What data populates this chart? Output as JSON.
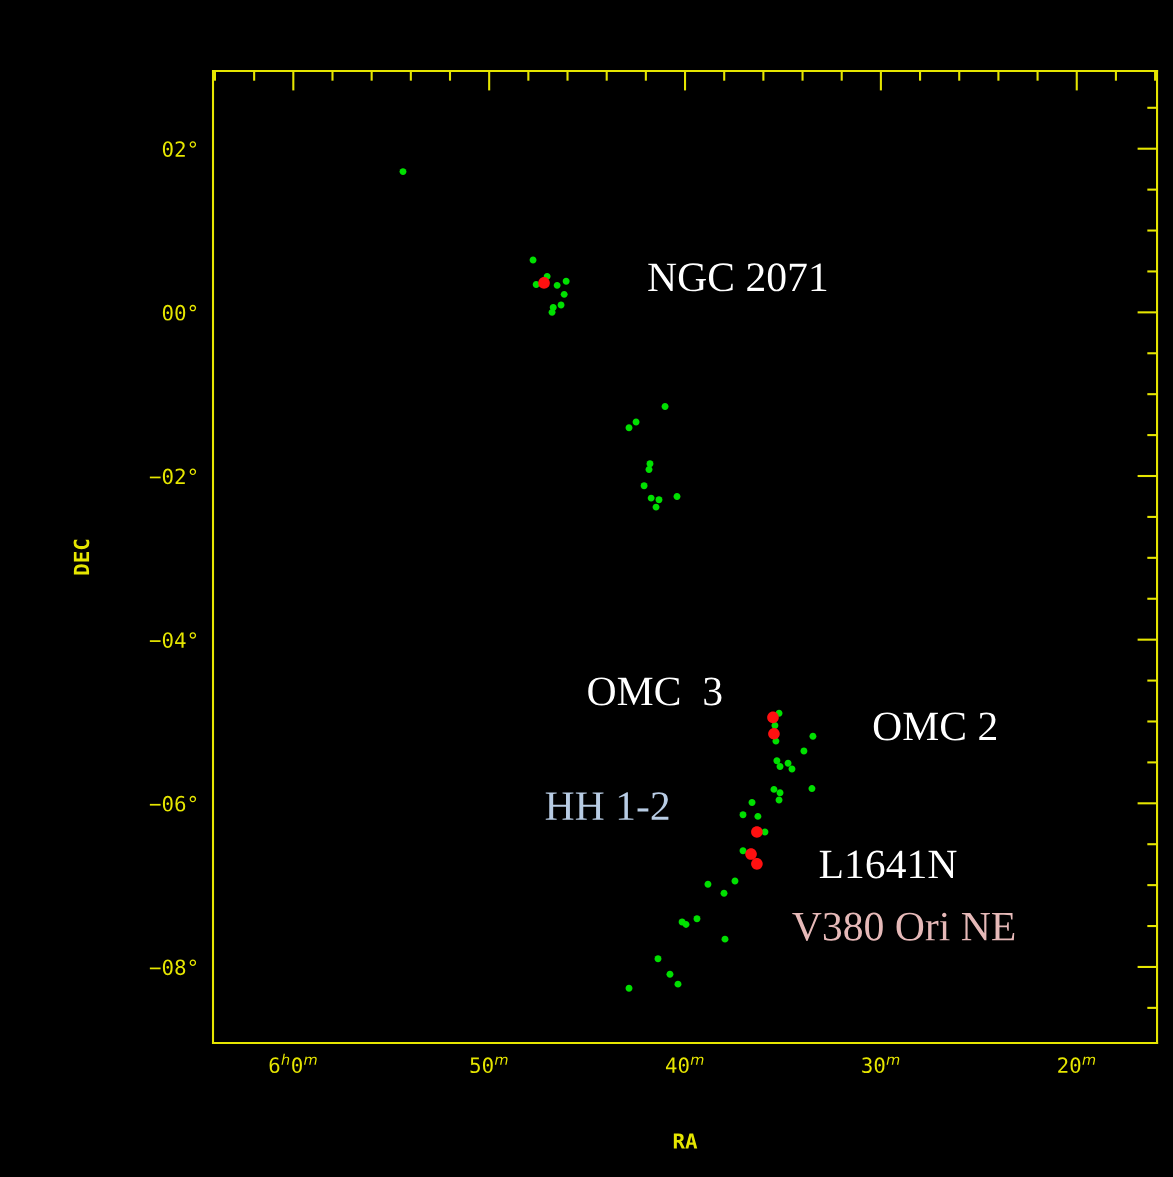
{
  "chart_data": {
    "type": "scatter",
    "xlabel": "RA",
    "ylabel": "DEC",
    "xlim": [
      64.1,
      15.9
    ],
    "ylim": [
      -8.93,
      2.95
    ],
    "xticks": [
      {
        "value": 64,
        "label": null
      },
      {
        "value": 62,
        "label": null
      },
      {
        "value": 60,
        "label": "6$^{h}$0$^{m}$"
      },
      {
        "value": 58,
        "label": null
      },
      {
        "value": 56,
        "label": null
      },
      {
        "value": 54,
        "label": null
      },
      {
        "value": 52,
        "label": null
      },
      {
        "value": 50,
        "label": "50$^{m}$"
      },
      {
        "value": 48,
        "label": null
      },
      {
        "value": 46,
        "label": null
      },
      {
        "value": 44,
        "label": null
      },
      {
        "value": 42,
        "label": null
      },
      {
        "value": 40,
        "label": "40$^{m}$"
      },
      {
        "value": 38,
        "label": null
      },
      {
        "value": 36,
        "label": null
      },
      {
        "value": 34,
        "label": null
      },
      {
        "value": 32,
        "label": null
      },
      {
        "value": 30,
        "label": "30$^{m}$"
      },
      {
        "value": 28,
        "label": null
      },
      {
        "value": 26,
        "label": null
      },
      {
        "value": 24,
        "label": null
      },
      {
        "value": 22,
        "label": null
      },
      {
        "value": 20,
        "label": "20$^{m}$"
      },
      {
        "value": 18,
        "label": null
      },
      {
        "value": 16,
        "label": null
      }
    ],
    "yticks": [
      {
        "value": -8.5,
        "label": null
      },
      {
        "value": -8,
        "label": "−08°"
      },
      {
        "value": -7.5,
        "label": null
      },
      {
        "value": -7,
        "label": null
      },
      {
        "value": -6.5,
        "label": null
      },
      {
        "value": -6,
        "label": "−06°"
      },
      {
        "value": -5.5,
        "label": null
      },
      {
        "value": -5,
        "label": null
      },
      {
        "value": -4.5,
        "label": null
      },
      {
        "value": -4,
        "label": "−04°"
      },
      {
        "value": -3.5,
        "label": null
      },
      {
        "value": -3,
        "label": null
      },
      {
        "value": -2.5,
        "label": null
      },
      {
        "value": -2,
        "label": "−02°"
      },
      {
        "value": -1.5,
        "label": null
      },
      {
        "value": -1,
        "label": null
      },
      {
        "value": -0.5,
        "label": null
      },
      {
        "value": 0,
        "label": "00°"
      },
      {
        "value": 0.5,
        "label": null
      },
      {
        "value": 1,
        "label": null
      },
      {
        "value": 1.5,
        "label": null
      },
      {
        "value": 2,
        "label": "02°"
      },
      {
        "value": 2.5,
        "label": null
      }
    ],
    "grid": false,
    "marker": "circle",
    "series": [
      {
        "color": "#00e000",
        "x": [
          54.4,
          47.76,
          47.04,
          47.6,
          46.53,
          46.07,
          46.17,
          46.33,
          46.73,
          46.79,
          41.02,
          42.5,
          42.86,
          41.79,
          41.84,
          42.09,
          41.73,
          41.33,
          40.41,
          41.48,
          35.2,
          35.41,
          35.36,
          33.47,
          33.93,
          35.31,
          34.74,
          34.54,
          35.15,
          35.46,
          35.15,
          35.2,
          33.52,
          36.58,
          37.04,
          36.28,
          35.92,
          37.04,
          37.45,
          38.83,
          38.01,
          39.39,
          40.15,
          39.95,
          37.96,
          41.38,
          40.77,
          40.36,
          42.86
        ],
        "values": [
          1.72,
          0.64,
          0.44,
          0.34,
          0.33,
          0.38,
          0.22,
          0.09,
          0.06,
          0.0,
          -1.15,
          -1.34,
          -1.41,
          -1.85,
          -1.92,
          -2.12,
          -2.27,
          -2.29,
          -2.25,
          -2.38,
          -4.9,
          -5.05,
          -5.24,
          -5.18,
          -5.36,
          -5.48,
          -5.51,
          -5.58,
          -5.55,
          -5.83,
          -5.87,
          -5.96,
          -5.82,
          -5.99,
          -6.14,
          -6.16,
          -6.35,
          -6.58,
          -6.95,
          -6.99,
          -7.1,
          -7.41,
          -7.45,
          -7.48,
          -7.66,
          -7.9,
          -8.09,
          -8.21,
          -8.26
        ]
      },
      {
        "color": "#ff1010",
        "x": [
          47.2,
          35.51,
          35.46,
          36.33,
          36.63,
          36.33
        ],
        "values": [
          0.36,
          -4.95,
          -5.15,
          -6.35,
          -6.62,
          -6.74
        ]
      }
    ],
    "annotations": [
      "NGC 2071",
      "OMC  3",
      "OMC 2",
      "HH 1-2",
      "L1641N",
      "V380 Ori NE"
    ]
  }
}
